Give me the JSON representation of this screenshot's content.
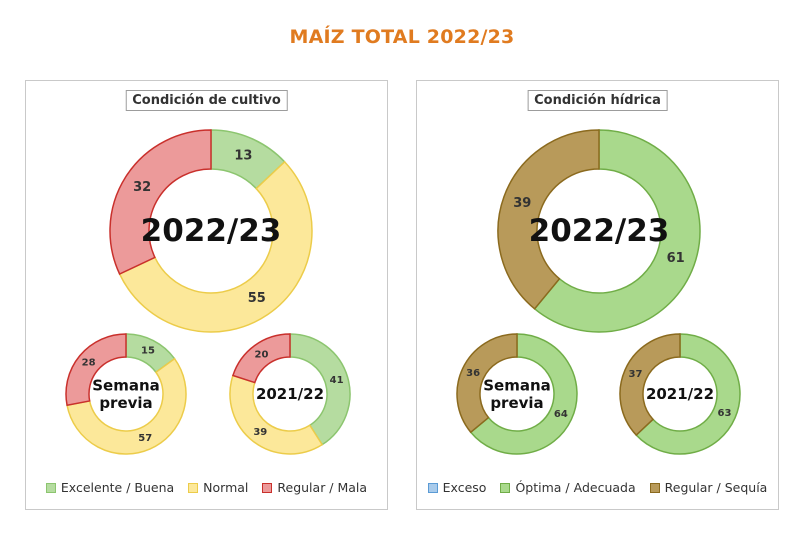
{
  "title": "MAÍZ TOTAL 2022/23",
  "panels": [
    {
      "title": "Condición  de cultivo",
      "legend": [
        {
          "label": "Excelente / Buena",
          "color": "#b5dca0",
          "stroke": "#8cc56f"
        },
        {
          "label": "Normal",
          "color": "#fce89a",
          "stroke": "#eccc4a"
        },
        {
          "label": "Regular / Mala",
          "color": "#ec9a9a",
          "stroke": "#c9302c"
        }
      ]
    },
    {
      "title": "Condición  hídrica",
      "legend": [
        {
          "label": "Exceso",
          "color": "#a9cbeb",
          "stroke": "#5b9bd5"
        },
        {
          "label": "Óptima / Adecuada",
          "color": "#a9d98c",
          "stroke": "#70ad47"
        },
        {
          "label": "Regular / Sequía",
          "color": "#b89a5a",
          "stroke": "#8b6a1e"
        }
      ]
    }
  ],
  "chart_data": [
    {
      "type": "donut",
      "panel": "Condición  de cultivo",
      "center_label": "2022/23",
      "categories": [
        "Excelente / Buena",
        "Normal",
        "Regular / Mala"
      ],
      "values": [
        13,
        55,
        32
      ]
    },
    {
      "type": "donut",
      "panel": "Condición  de cultivo",
      "center_label": "Semana previa",
      "categories": [
        "Excelente / Buena",
        "Normal",
        "Regular / Mala"
      ],
      "values": [
        15,
        57,
        28
      ]
    },
    {
      "type": "donut",
      "panel": "Condición  de cultivo",
      "center_label": "2021/22",
      "categories": [
        "Excelente / Buena",
        "Normal",
        "Regular / Mala"
      ],
      "values": [
        41,
        39,
        20
      ]
    },
    {
      "type": "donut",
      "panel": "Condición  hídrica",
      "center_label": "2022/23",
      "categories": [
        "Exceso",
        "Óptima / Adecuada",
        "Regular / Sequía"
      ],
      "values": [
        0,
        61,
        39
      ]
    },
    {
      "type": "donut",
      "panel": "Condición  hídrica",
      "center_label": "Semana previa",
      "categories": [
        "Exceso",
        "Óptima / Adecuada",
        "Regular / Sequía"
      ],
      "values": [
        0,
        64,
        36
      ]
    },
    {
      "type": "donut",
      "panel": "Condición  hídrica",
      "center_label": "2021/22",
      "categories": [
        "Exceso",
        "Óptima / Adecuada",
        "Regular / Sequía"
      ],
      "values": [
        0,
        63,
        37
      ]
    }
  ]
}
